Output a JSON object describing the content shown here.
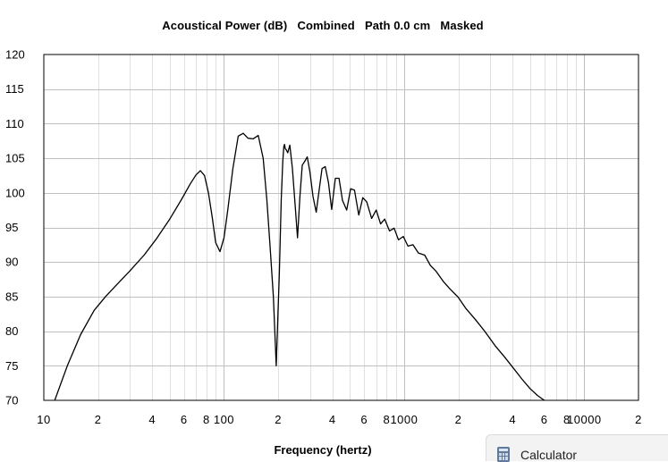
{
  "chart_data": {
    "type": "line",
    "title": "Acoustical Power (dB)   Combined   Path 0.0 cm   Masked",
    "xlabel": "Frequency (hertz)",
    "ylabel": "",
    "x_scale": "log",
    "xlim": [
      10,
      20000
    ],
    "ylim": [
      70,
      120
    ],
    "y_ticks": [
      120,
      115,
      110,
      105,
      100,
      95,
      90,
      85,
      80,
      75,
      70
    ],
    "x_tick_labels": [
      {
        "value": 10,
        "label": "10"
      },
      {
        "value": 20,
        "label": "2"
      },
      {
        "value": 40,
        "label": "4"
      },
      {
        "value": 60,
        "label": "6"
      },
      {
        "value": 80,
        "label": "8"
      },
      {
        "value": 100,
        "label": "100"
      },
      {
        "value": 200,
        "label": "2"
      },
      {
        "value": 400,
        "label": "4"
      },
      {
        "value": 600,
        "label": "6"
      },
      {
        "value": 800,
        "label": "8"
      },
      {
        "value": 1000,
        "label": "1000"
      },
      {
        "value": 2000,
        "label": "2"
      },
      {
        "value": 4000,
        "label": "4"
      },
      {
        "value": 6000,
        "label": "6"
      },
      {
        "value": 8000,
        "label": "8"
      },
      {
        "value": 10000,
        "label": "10000"
      },
      {
        "value": 20000,
        "label": "2"
      }
    ],
    "grid": true,
    "series": [
      {
        "x": [
          11.5,
          13.5,
          16,
          19,
          22,
          26,
          30,
          36,
          42,
          50,
          58,
          65,
          70,
          74,
          78,
          82,
          86,
          90,
          95,
          100,
          105,
          112,
          120,
          128,
          136,
          145,
          155,
          165,
          173,
          180,
          188,
          195,
          203,
          208,
          212,
          215,
          217,
          219,
          222,
          226,
          232,
          240,
          248,
          256,
          264,
          272,
          280,
          290,
          300,
          312,
          325,
          338,
          350,
          365,
          380,
          396,
          415,
          435,
          455,
          480,
          505,
          530,
          560,
          590,
          620,
          660,
          700,
          740,
          780,
          830,
          880,
          930,
          990,
          1050,
          1120,
          1200,
          1300,
          1400,
          1500,
          1650,
          1800,
          2000,
          2200,
          2500,
          2800,
          3200,
          3600,
          4000,
          4500,
          5000,
          5500,
          6000
        ],
        "y": [
          70,
          75,
          79.5,
          83,
          85,
          87,
          88.7,
          91,
          93.3,
          96.2,
          99,
          101.3,
          102.6,
          103.2,
          102.5,
          100,
          96.5,
          92.8,
          91.5,
          93.5,
          97.5,
          103.5,
          108.2,
          108.6,
          107.9,
          107.8,
          108.3,
          105,
          99,
          92.5,
          85,
          75,
          88.5,
          99,
          104.5,
          106.7,
          107,
          106.4,
          106.2,
          105.8,
          106.9,
          103.5,
          98.5,
          93.5,
          99.5,
          104,
          104.5,
          105.2,
          103,
          99.5,
          97.2,
          100.5,
          103.5,
          103.8,
          101.5,
          97.6,
          102.1,
          102.1,
          98.9,
          97.5,
          100.6,
          100.4,
          96.8,
          99.3,
          98.7,
          96.3,
          97.5,
          95.5,
          96.2,
          94.5,
          94.9,
          93.2,
          93.7,
          92.3,
          92.5,
          91.3,
          91,
          89.5,
          88.7,
          87.2,
          86.1,
          84.9,
          83.3,
          81.6,
          80,
          77.9,
          76.3,
          74.8,
          73.1,
          71.7,
          70.7,
          70
        ]
      }
    ]
  },
  "taskbar_item": {
    "label": "Calculator",
    "icon": "calculator-icon"
  },
  "colors": {
    "plot_line": "#000000",
    "major_grid": "#c0c0c0",
    "minor_grid": "#e0e0e0",
    "background": "#ffffff"
  }
}
